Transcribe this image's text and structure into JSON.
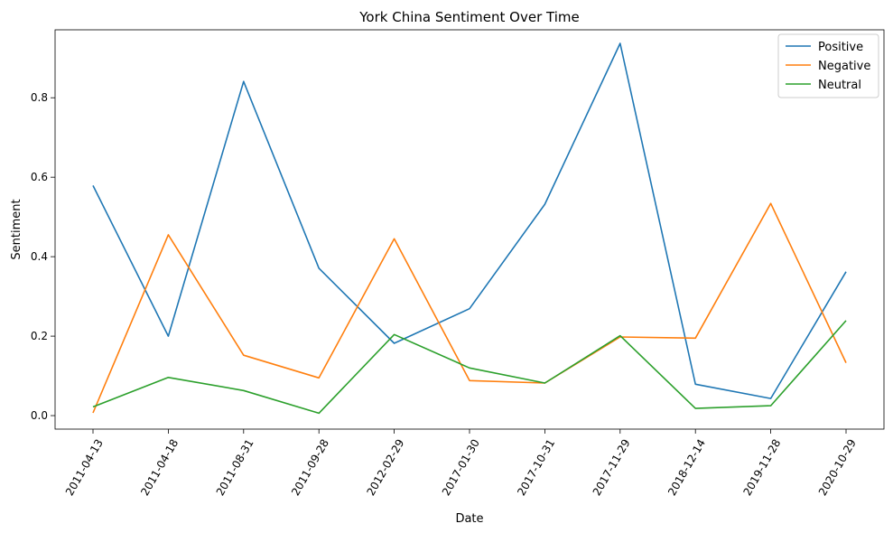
{
  "chart_data": {
    "type": "line",
    "title": "York China Sentiment Over Time",
    "xlabel": "Date",
    "ylabel": "Sentiment",
    "categories": [
      "2011-04-13",
      "2011-04-18",
      "2011-08-31",
      "2011-09-28",
      "2012-02-29",
      "2017-01-30",
      "2017-10-31",
      "2017-11-29",
      "2018-12-14",
      "2019-11-28",
      "2020-10-29"
    ],
    "ylim": [
      -0.034,
      0.971
    ],
    "yticks": [
      0.0,
      0.2,
      0.4,
      0.6,
      0.8
    ],
    "ytick_labels": [
      "0.0",
      "0.2",
      "0.4",
      "0.6",
      "0.8"
    ],
    "grid": false,
    "legend": "top-right",
    "series": [
      {
        "name": "Positive",
        "color": "#1f77b4",
        "values": [
          0.579,
          0.2,
          0.841,
          0.371,
          0.182,
          0.269,
          0.532,
          0.937,
          0.079,
          0.043,
          0.362
        ]
      },
      {
        "name": "Negative",
        "color": "#ff7f0e",
        "values": [
          0.007,
          0.455,
          0.152,
          0.095,
          0.445,
          0.088,
          0.082,
          0.198,
          0.195,
          0.534,
          0.133
        ]
      },
      {
        "name": "Neutral",
        "color": "#2ca02c",
        "values": [
          0.022,
          0.096,
          0.063,
          0.006,
          0.204,
          0.12,
          0.082,
          0.201,
          0.018,
          0.025,
          0.239
        ]
      }
    ]
  }
}
